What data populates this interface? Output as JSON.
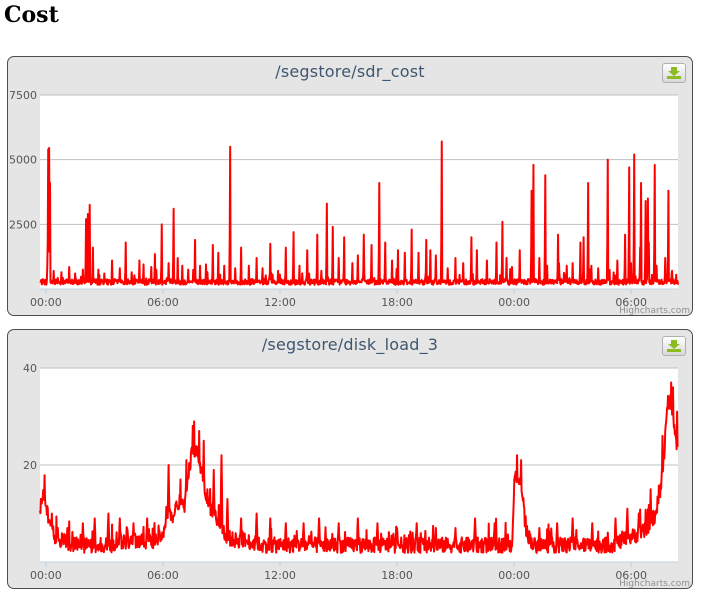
{
  "page": {
    "heading": "Cost"
  },
  "colors": {
    "series": "#ff0000",
    "grid": "#c0c0c0",
    "plot_bg": "#ffffff",
    "panel_bg": "#e5e5e5"
  },
  "icons": {
    "export": "download-icon"
  },
  "credits": "Highcharts.com",
  "chart_data": [
    {
      "type": "line",
      "title": "/segstore/sdr_cost",
      "xlabel": "",
      "ylabel": "",
      "x_unit": "hours since 00:00",
      "xlim": [
        -0.3,
        32.4
      ],
      "ylim": [
        0,
        7500
      ],
      "y_ticks": [
        2500,
        5000,
        7500
      ],
      "x_ticks": [
        0,
        6,
        12,
        18,
        24,
        30
      ],
      "x_tick_labels": [
        "00:00",
        "06:00",
        "12:00",
        "18:00",
        "00:00",
        "06:00"
      ],
      "grid": true,
      "legend": "none",
      "color": "#ff0000",
      "base": 250,
      "spikes": [
        [
          0.08,
          900
        ],
        [
          0.12,
          5400
        ],
        [
          0.17,
          5450
        ],
        [
          0.22,
          4100
        ],
        [
          0.4,
          700
        ],
        [
          0.8,
          650
        ],
        [
          1.2,
          850
        ],
        [
          1.5,
          600
        ],
        [
          1.9,
          750
        ],
        [
          2.05,
          2700
        ],
        [
          2.15,
          2900
        ],
        [
          2.25,
          3250
        ],
        [
          2.4,
          1600
        ],
        [
          2.7,
          750
        ],
        [
          3.0,
          600
        ],
        [
          3.4,
          1100
        ],
        [
          3.8,
          800
        ],
        [
          4.1,
          1800
        ],
        [
          4.4,
          650
        ],
        [
          4.8,
          1100
        ],
        [
          5.0,
          950
        ],
        [
          5.4,
          850
        ],
        [
          5.6,
          1350
        ],
        [
          5.95,
          2500
        ],
        [
          6.3,
          1000
        ],
        [
          6.55,
          3100
        ],
        [
          6.75,
          1200
        ],
        [
          7.0,
          900
        ],
        [
          7.3,
          750
        ],
        [
          7.65,
          1900
        ],
        [
          7.9,
          900
        ],
        [
          8.2,
          950
        ],
        [
          8.55,
          1700
        ],
        [
          8.85,
          1400
        ],
        [
          9.15,
          900
        ],
        [
          9.45,
          5500
        ],
        [
          9.7,
          800
        ],
        [
          10.0,
          1600
        ],
        [
          10.4,
          900
        ],
        [
          10.8,
          1200
        ],
        [
          11.1,
          800
        ],
        [
          11.5,
          1750
        ],
        [
          11.9,
          700
        ],
        [
          12.3,
          1600
        ],
        [
          12.7,
          2200
        ],
        [
          13.0,
          900
        ],
        [
          13.4,
          1500
        ],
        [
          13.9,
          2100
        ],
        [
          14.4,
          3300
        ],
        [
          14.7,
          2400
        ],
        [
          15.0,
          1200
        ],
        [
          15.3,
          2000
        ],
        [
          15.7,
          1000
        ],
        [
          16.0,
          1300
        ],
        [
          16.3,
          2100
        ],
        [
          16.7,
          1700
        ],
        [
          17.1,
          4100
        ],
        [
          17.4,
          1800
        ],
        [
          17.75,
          1100
        ],
        [
          18.05,
          1500
        ],
        [
          18.4,
          1400
        ],
        [
          18.75,
          2300
        ],
        [
          19.1,
          1400
        ],
        [
          19.5,
          1900
        ],
        [
          19.7,
          1500
        ],
        [
          20.0,
          1300
        ],
        [
          20.3,
          5700
        ],
        [
          20.6,
          800
        ],
        [
          21.0,
          1200
        ],
        [
          21.4,
          1000
        ],
        [
          21.8,
          2000
        ],
        [
          22.1,
          1500
        ],
        [
          22.6,
          1100
        ],
        [
          23.1,
          1800
        ],
        [
          23.4,
          2600
        ],
        [
          23.6,
          1200
        ],
        [
          23.9,
          850
        ],
        [
          24.3,
          1500
        ],
        [
          24.9,
          850
        ],
        [
          25.3,
          1200
        ],
        [
          25.7,
          900
        ],
        [
          26.3,
          1000
        ],
        [
          26.7,
          900
        ],
        [
          27.0,
          1000
        ],
        [
          27.4,
          1800
        ],
        [
          27.55,
          2000
        ],
        [
          27.8,
          4100
        ],
        [
          27.95,
          900
        ],
        [
          28.3,
          800
        ],
        [
          28.8,
          5000
        ],
        [
          29.3,
          1100
        ],
        [
          29.7,
          2100
        ],
        [
          30.0,
          1000
        ],
        [
          30.45,
          1600
        ],
        [
          30.9,
          1800
        ],
        [
          31.3,
          900
        ],
        [
          31.75,
          1200
        ],
        [
          32.1,
          700
        ],
        [
          32.3,
          550
        ],
        [
          31.9,
          3800
        ],
        [
          31.2,
          4800
        ],
        [
          30.75,
          3400
        ],
        [
          30.85,
          3500
        ],
        [
          30.5,
          4100
        ],
        [
          30.15,
          5200
        ],
        [
          29.9,
          4700
        ],
        [
          25.6,
          4400
        ],
        [
          25.0,
          4800
        ],
        [
          24.9,
          3800
        ],
        [
          26.25,
          2100
        ]
      ]
    },
    {
      "type": "line",
      "title": "/segstore/disk_load_3",
      "xlabel": "",
      "ylabel": "",
      "x_unit": "hours since 00:00",
      "xlim": [
        -0.3,
        32.4
      ],
      "ylim": [
        0,
        40
      ],
      "y_ticks": [
        20,
        40
      ],
      "x_ticks": [
        0,
        6,
        12,
        18,
        24,
        30
      ],
      "x_tick_labels": [
        "00:00",
        "06:00",
        "12:00",
        "18:00",
        "00:00",
        "06:00"
      ],
      "grid": true,
      "legend": "none",
      "color": "#ff0000",
      "profile": [
        [
          -0.3,
          10
        ],
        [
          -0.15,
          14
        ],
        [
          0.1,
          9
        ],
        [
          0.4,
          5
        ],
        [
          0.8,
          4
        ],
        [
          1.5,
          3
        ],
        [
          2.5,
          3
        ],
        [
          3.5,
          3
        ],
        [
          4.5,
          4
        ],
        [
          5.0,
          3
        ],
        [
          5.6,
          4
        ],
        [
          6.0,
          5
        ],
        [
          6.2,
          10
        ],
        [
          6.5,
          9
        ],
        [
          6.8,
          12
        ],
        [
          7.1,
          11
        ],
        [
          7.3,
          18
        ],
        [
          7.5,
          22
        ],
        [
          7.75,
          23
        ],
        [
          7.9,
          20
        ],
        [
          8.2,
          14
        ],
        [
          8.5,
          10
        ],
        [
          8.9,
          8
        ],
        [
          9.2,
          5
        ],
        [
          9.6,
          4
        ],
        [
          10.2,
          4
        ],
        [
          11.0,
          3
        ],
        [
          12.0,
          3
        ],
        [
          13.0,
          3
        ],
        [
          14.0,
          3
        ],
        [
          15.0,
          3
        ],
        [
          16.0,
          3
        ],
        [
          17.0,
          3
        ],
        [
          18.0,
          3
        ],
        [
          19.0,
          3
        ],
        [
          20.0,
          3
        ],
        [
          21.0,
          3
        ],
        [
          22.0,
          3
        ],
        [
          23.0,
          3
        ],
        [
          23.9,
          3
        ],
        [
          24.0,
          15
        ],
        [
          24.1,
          17
        ],
        [
          24.4,
          15
        ],
        [
          24.6,
          6
        ],
        [
          25.0,
          3
        ],
        [
          26.0,
          3
        ],
        [
          27.0,
          3
        ],
        [
          28.0,
          3
        ],
        [
          29.0,
          3
        ],
        [
          29.6,
          4
        ],
        [
          30.2,
          5
        ],
        [
          30.7,
          6
        ],
        [
          31.2,
          9
        ],
        [
          31.5,
          14
        ],
        [
          31.7,
          22
        ],
        [
          31.85,
          32
        ],
        [
          32.0,
          33
        ],
        [
          32.2,
          28
        ],
        [
          32.35,
          22
        ]
      ],
      "spikes": [
        [
          0.3,
          10
        ],
        [
          0.6,
          7
        ],
        [
          1.1,
          7
        ],
        [
          1.9,
          8
        ],
        [
          2.5,
          9
        ],
        [
          3.2,
          10
        ],
        [
          3.8,
          9
        ],
        [
          4.5,
          8
        ],
        [
          5.2,
          9
        ],
        [
          6.3,
          20
        ],
        [
          6.9,
          17
        ],
        [
          7.2,
          21
        ],
        [
          7.6,
          29
        ],
        [
          7.85,
          27
        ],
        [
          8.1,
          25
        ],
        [
          8.6,
          19
        ],
        [
          9.0,
          22
        ],
        [
          9.3,
          13
        ],
        [
          10.0,
          9
        ],
        [
          10.8,
          10
        ],
        [
          11.5,
          9
        ],
        [
          12.3,
          8
        ],
        [
          13.2,
          8
        ],
        [
          14.0,
          9
        ],
        [
          15.0,
          8
        ],
        [
          16.0,
          9
        ],
        [
          17.0,
          8
        ],
        [
          18.0,
          7
        ],
        [
          19.0,
          8
        ],
        [
          20.0,
          7
        ],
        [
          21.0,
          7
        ],
        [
          22.0,
          9
        ],
        [
          23.0,
          8
        ],
        [
          24.15,
          22
        ],
        [
          24.35,
          21
        ],
        [
          25.3,
          7
        ],
        [
          26.2,
          8
        ],
        [
          27.0,
          9
        ],
        [
          28.0,
          8
        ],
        [
          29.2,
          9
        ],
        [
          29.8,
          11
        ],
        [
          30.4,
          10
        ],
        [
          31.0,
          15
        ],
        [
          31.6,
          26
        ],
        [
          31.75,
          27
        ],
        [
          32.05,
          37
        ],
        [
          32.15,
          36
        ],
        [
          32.35,
          31
        ]
      ]
    }
  ]
}
